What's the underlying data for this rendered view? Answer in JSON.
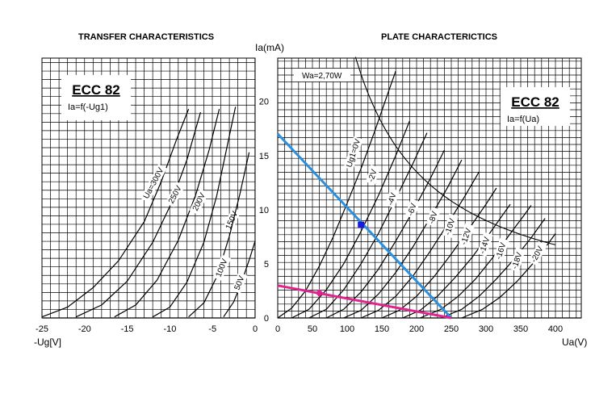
{
  "chart_data": [
    {
      "type": "line",
      "title": "TRANSFER CHARACTERISTICS",
      "box_title": "ECC 82",
      "box_subtitle": "Ia=f(-Ug1)",
      "xlabel": "-Ug[V]",
      "xlim": [
        -25,
        0
      ],
      "ylim": [
        0,
        24
      ],
      "x_ticks": [
        -25,
        -20,
        -15,
        -10,
        -5,
        0
      ],
      "grid": true,
      "series": [
        {
          "name": "Ua=300V",
          "points": [
            [
              -25,
              0.1
            ],
            [
              -22,
              1.0
            ],
            [
              -19,
              2.8
            ],
            [
              -16,
              5.3
            ],
            [
              -13,
              8.9
            ],
            [
              -11,
              12.6
            ],
            [
              -9.2,
              16.5
            ],
            [
              -7.8,
              19.3
            ]
          ]
        },
        {
          "name": "250V",
          "points": [
            [
              -21,
              0.1
            ],
            [
              -18,
              1.2
            ],
            [
              -15,
              3.4
            ],
            [
              -12,
              7.0
            ],
            [
              -10,
              10.3
            ],
            [
              -8,
              14.6
            ],
            [
              -6.4,
              19.0
            ]
          ]
        },
        {
          "name": "200V",
          "points": [
            [
              -16.5,
              0.1
            ],
            [
              -14,
              1.2
            ],
            [
              -11.5,
              3.5
            ],
            [
              -9,
              7.2
            ],
            [
              -7,
              11.3
            ],
            [
              -5.4,
              15.5
            ],
            [
              -4.2,
              19.3
            ]
          ]
        },
        {
          "name": "150V",
          "points": [
            [
              -12,
              0.1
            ],
            [
              -10,
              1.0
            ],
            [
              -8,
              3.3
            ],
            [
              -6,
              7.0
            ],
            [
              -4.5,
              11.3
            ],
            [
              -3.3,
              15.8
            ],
            [
              -2.3,
              19.5
            ]
          ]
        },
        {
          "name": "100V",
          "points": [
            [
              -7.8,
              0.1
            ],
            [
              -6,
              1.4
            ],
            [
              -4.5,
              3.8
            ],
            [
              -3,
              7.6
            ],
            [
              -1.8,
              11.4
            ],
            [
              -0.7,
              15.3
            ]
          ]
        },
        {
          "name": "50V",
          "points": [
            [
              -3.7,
              0.1
            ],
            [
              -2.5,
              1.5
            ],
            [
              -1.5,
              3.5
            ],
            [
              -0.6,
              5.6
            ],
            [
              0,
              7.1
            ]
          ]
        }
      ]
    },
    {
      "type": "line",
      "title": "PLATE CHARACTERICTICS",
      "box_title": "ECC 82",
      "box_subtitle": "Ia=f(Ua)",
      "ylabel": "Ia(mA)",
      "xlabel": "Ua(V)",
      "xlim": [
        0,
        400
      ],
      "ylim": [
        0,
        24
      ],
      "x_ticks": [
        0,
        50,
        100,
        150,
        200,
        250,
        300,
        350,
        400
      ],
      "y_ticks": [
        0,
        5,
        10,
        15,
        20
      ],
      "grid": true,
      "power_curve_label": "Wa=2,70W",
      "power_curve_watts": 2.7,
      "series": [
        {
          "name": "Ug1=0V",
          "points": [
            [
              0,
              0
            ],
            [
              20,
              0.9
            ],
            [
              40,
              2.5
            ],
            [
              60,
              4.8
            ],
            [
              80,
              7.5
            ],
            [
              100,
              10.6
            ],
            [
              120,
              13.8
            ],
            [
              140,
              17.3
            ],
            [
              160,
              21
            ],
            [
              170,
              22.8
            ]
          ]
        },
        {
          "name": "-2V",
          "points": [
            [
              20,
              0
            ],
            [
              45,
              0.8
            ],
            [
              70,
              2.6
            ],
            [
              95,
              5.0
            ],
            [
              120,
              8.0
            ],
            [
              145,
              11.3
            ],
            [
              170,
              15.0
            ],
            [
              190,
              18.2
            ]
          ]
        },
        {
          "name": "-4V",
          "points": [
            [
              45,
              0
            ],
            [
              70,
              0.8
            ],
            [
              95,
              2.6
            ],
            [
              120,
              5.0
            ],
            [
              145,
              7.8
            ],
            [
              170,
              11.0
            ],
            [
              195,
              14.3
            ],
            [
              215,
              17.1
            ]
          ]
        },
        {
          "name": "-6V",
          "points": [
            [
              70,
              0
            ],
            [
              95,
              0.8
            ],
            [
              120,
              2.4
            ],
            [
              145,
              4.5
            ],
            [
              170,
              7.1
            ],
            [
              195,
              9.9
            ],
            [
              220,
              12.9
            ],
            [
              240,
              15.5
            ]
          ]
        },
        {
          "name": "-8V",
          "points": [
            [
              95,
              0
            ],
            [
              120,
              0.7
            ],
            [
              145,
              2.2
            ],
            [
              170,
              4.2
            ],
            [
              195,
              6.6
            ],
            [
              220,
              9.3
            ],
            [
              245,
              12.1
            ],
            [
              265,
              14.6
            ]
          ]
        },
        {
          "name": "-10V",
          "points": [
            [
              120,
              0
            ],
            [
              145,
              0.7
            ],
            [
              170,
              2.0
            ],
            [
              195,
              3.9
            ],
            [
              220,
              6.2
            ],
            [
              245,
              8.7
            ],
            [
              270,
              11.3
            ],
            [
              290,
              13.5
            ]
          ]
        },
        {
          "name": "-12V",
          "points": [
            [
              150,
              0
            ],
            [
              175,
              0.7
            ],
            [
              200,
              2.0
            ],
            [
              225,
              3.8
            ],
            [
              250,
              5.9
            ],
            [
              275,
              8.2
            ],
            [
              300,
              10.5
            ],
            [
              315,
              12.0
            ]
          ]
        },
        {
          "name": "-14V",
          "points": [
            [
              180,
              0
            ],
            [
              205,
              0.7
            ],
            [
              230,
              2.0
            ],
            [
              255,
              3.7
            ],
            [
              280,
              5.6
            ],
            [
              305,
              7.8
            ],
            [
              325,
              9.6
            ],
            [
              335,
              10.5
            ]
          ]
        },
        {
          "name": "-16V",
          "points": [
            [
              205,
              0
            ],
            [
              235,
              0.8
            ],
            [
              260,
              2.0
            ],
            [
              285,
              3.6
            ],
            [
              310,
              5.6
            ],
            [
              335,
              7.8
            ],
            [
              355,
              9.5
            ],
            [
              365,
              10.4
            ]
          ]
        },
        {
          "name": "-18V",
          "points": [
            [
              235,
              0
            ],
            [
              265,
              0.8
            ],
            [
              290,
              2.0
            ],
            [
              315,
              3.6
            ],
            [
              340,
              5.4
            ],
            [
              365,
              7.4
            ],
            [
              385,
              9.2
            ]
          ]
        },
        {
          "name": "-20V",
          "points": [
            [
              265,
              0
            ],
            [
              295,
              0.8
            ],
            [
              320,
              1.9
            ],
            [
              345,
              3.4
            ],
            [
              370,
              5.2
            ],
            [
              390,
              6.9
            ],
            [
              400,
              7.8
            ]
          ]
        }
      ],
      "load_line_1": {
        "points": [
          [
            0,
            17
          ],
          [
            250,
            0
          ]
        ],
        "operating_point": [
          120,
          8.6
        ]
      },
      "load_line_2": {
        "points": [
          [
            0,
            3
          ],
          [
            250,
            0
          ]
        ],
        "operating_point": [
          60,
          2.3
        ]
      }
    }
  ],
  "colors": {
    "curve": "#000000",
    "grid": "#000000",
    "load_line_1": "#2b8fe0",
    "load_line_2": "#e0238f",
    "op_point_1": "#1a1adf",
    "op_point_2": "#e0238f"
  }
}
